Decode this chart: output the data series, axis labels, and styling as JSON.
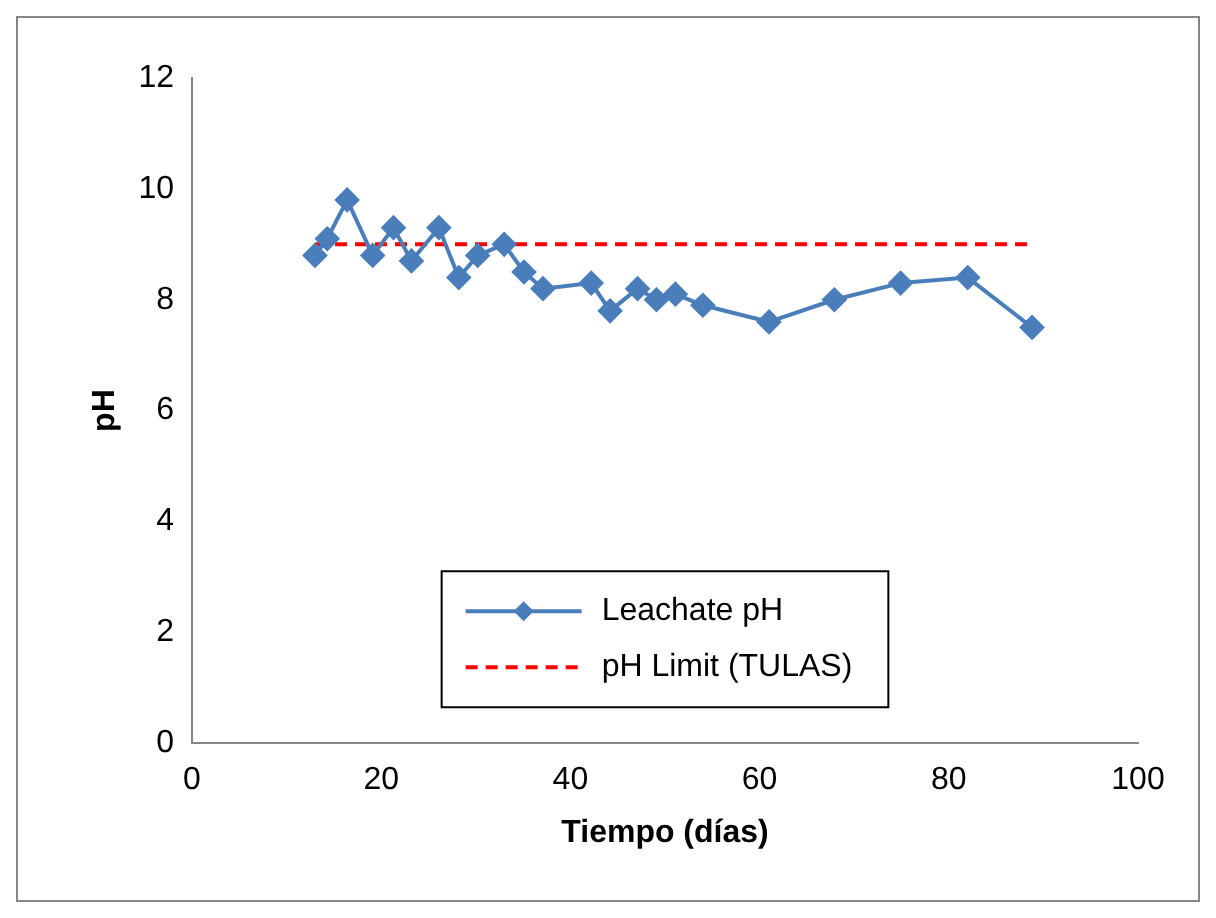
{
  "chart_data": {
    "type": "line",
    "xlabel": "Tiempo (días)",
    "ylabel": "pH",
    "xlim": [
      0,
      100
    ],
    "xticks": [
      0,
      20,
      40,
      60,
      80,
      100
    ],
    "ylim": [
      0,
      12
    ],
    "yticks": [
      0,
      2,
      4,
      6,
      8,
      10,
      12
    ],
    "grid": false,
    "legend": "bottom",
    "series": [
      {
        "name": "Leachate pH",
        "color": "#4a7ebb",
        "marker": "diamond",
        "line_style": "solid",
        "x": [
          13,
          14.3,
          16.4,
          19.1,
          21.3,
          23.2,
          26.1,
          28.2,
          30.2,
          33,
          35.1,
          37.1,
          42.2,
          44.2,
          47.1,
          49.1,
          51.1,
          54,
          61,
          67.9,
          74.9,
          82,
          88.8
        ],
        "values": [
          8.8,
          9.1,
          9.8,
          8.8,
          9.3,
          8.7,
          9.3,
          8.4,
          8.8,
          9.0,
          8.5,
          8.2,
          8.3,
          7.8,
          8.2,
          8.0,
          8.1,
          7.9,
          7.6,
          8.0,
          8.3,
          8.4,
          7.5
        ]
      },
      {
        "name": "pH Limit (TULAS)",
        "color": "#ff0000",
        "marker": "none",
        "line_style": "dashed",
        "x": [
          13,
          88.8
        ],
        "values": [
          9,
          9
        ]
      }
    ]
  }
}
